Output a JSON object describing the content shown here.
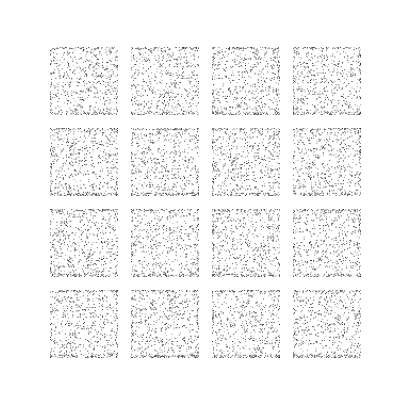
{
  "figure": {
    "background": "#ffffff",
    "dot_color": "#1a1a1a",
    "rows": 4,
    "cols": 4,
    "panel_count": 16,
    "panel_grid_size": 64,
    "dot_density": 0.12
  }
}
